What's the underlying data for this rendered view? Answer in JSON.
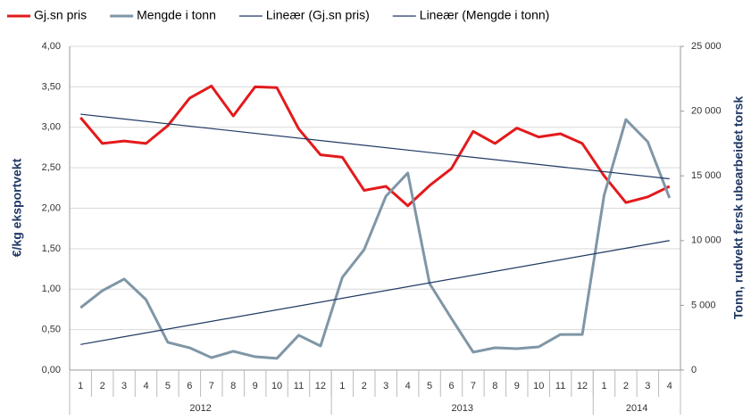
{
  "chart_data": {
    "type": "line",
    "categories": [
      "1",
      "2",
      "3",
      "4",
      "5",
      "6",
      "7",
      "8",
      "9",
      "10",
      "11",
      "12",
      "1",
      "2",
      "3",
      "4",
      "5",
      "6",
      "7",
      "8",
      "9",
      "10",
      "11",
      "12",
      "1",
      "2",
      "3",
      "4"
    ],
    "category_years": [
      "2012",
      "2012",
      "2012",
      "2012",
      "2012",
      "2012",
      "2012",
      "2012",
      "2012",
      "2012",
      "2012",
      "2012",
      "2013",
      "2013",
      "2013",
      "2013",
      "2013",
      "2013",
      "2013",
      "2013",
      "2013",
      "2013",
      "2013",
      "2013",
      "2014",
      "2014",
      "2014",
      "2014"
    ],
    "ylabel": "€/kg eksportvekt",
    "y2label": "Tonn, rudvekt fersk ubearbeidet torsk",
    "ylim": [
      0,
      4
    ],
    "yticks": [
      {
        "value": 0,
        "label": "0,00"
      },
      {
        "value": 0.5,
        "label": "0,50"
      },
      {
        "value": 1,
        "label": "1,00"
      },
      {
        "value": 1.5,
        "label": "1,50"
      },
      {
        "value": 2,
        "label": "2,00"
      },
      {
        "value": 2.5,
        "label": "2,50"
      },
      {
        "value": 3,
        "label": "3,00"
      },
      {
        "value": 3.5,
        "label": "3,50"
      },
      {
        "value": 4,
        "label": "4,00"
      }
    ],
    "y2lim": [
      0,
      25000
    ],
    "y2ticks": [
      0,
      {
        "value": 5000,
        "label": "5 000"
      },
      {
        "value": 10000,
        "label": "10 000"
      },
      {
        "value": 15000,
        "label": "15 000"
      },
      {
        "value": 20000,
        "label": "20 000"
      },
      {
        "value": 25000,
        "label": "25 000"
      }
    ],
    "grid": true,
    "legend": "top",
    "series": [
      {
        "name": "Gj.sn pris",
        "color": "#e31a1c",
        "values": [
          3.12,
          2.8,
          2.83,
          2.8,
          3.02,
          3.36,
          3.51,
          3.14,
          3.5,
          3.49,
          2.98,
          2.66,
          2.63,
          2.22,
          2.27,
          2.03,
          2.28,
          2.49,
          2.95,
          2.8,
          2.99,
          2.88,
          2.92,
          2.8,
          2.4,
          2.07,
          2.14,
          2.27
        ]
      },
      {
        "name": "Mengde i tonn",
        "color": "#7f96a6",
        "axis": "y2",
        "values": [
          4820,
          6130,
          7030,
          5440,
          2140,
          1720,
          960,
          1450,
          1030,
          900,
          2690,
          1860,
          7160,
          9300,
          13430,
          15220,
          6680,
          3990,
          1380,
          1720,
          1650,
          1790,
          2750,
          2750,
          13500,
          19350,
          17630,
          13290
        ]
      },
      {
        "name": "Lineær (Gj.sn pris)",
        "color": "#1f3864",
        "trend": "linear",
        "source": 0
      },
      {
        "name": "Lineær (Mengde i tonn)",
        "color": "#1f3864",
        "trend": "linear",
        "source": 1,
        "axis": "y2"
      }
    ]
  }
}
